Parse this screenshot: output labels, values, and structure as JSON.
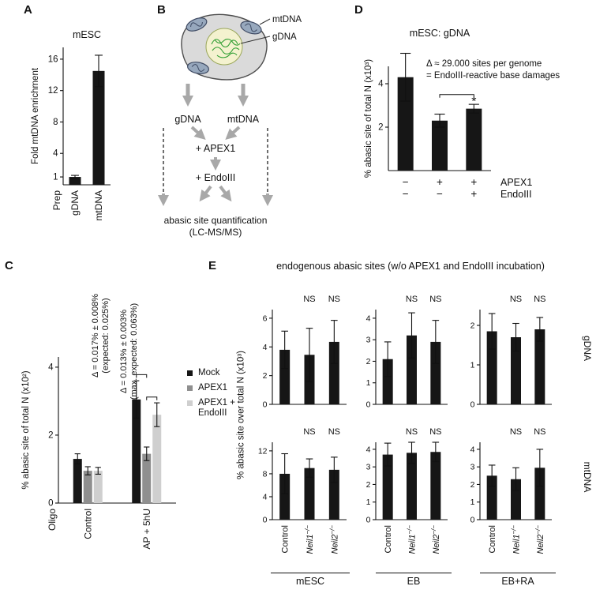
{
  "panels": {
    "A": {
      "letter": "A"
    },
    "B": {
      "letter": "B",
      "diagram": {
        "callout_mtDNA": "mtDNA",
        "callout_gDNA": "gDNA",
        "branch_left": "gDNA",
        "branch_right": "mtDNA",
        "step1": "+ APEX1",
        "step2": "+ EndoIII",
        "output_line1": "abasic site quantification",
        "output_line2": "(LC-MS/MS)",
        "arrow_color": "#a8a8a8",
        "cell_color": "#dadada",
        "nucleus_color": "#f4f2cf",
        "dna_scribble_color": "#2f9e33",
        "mitochondria_color": "#97a8bd"
      }
    },
    "C": {
      "letter": "C",
      "legend": [
        {
          "label": "Mock",
          "color": "#161616"
        },
        {
          "label": "APEX1",
          "color": "#8f8f8f"
        },
        {
          "label": "APEX1 +\nEndoIII",
          "color": "#cfcfcf"
        }
      ],
      "annotation1_line1": "Δ = 0.017% ± 0.008%",
      "annotation1_line2": "(expected: 0.025%)",
      "annotation2_line1": "Δ = 0.013% ± 0.003%",
      "annotation2_line2": "(max. expected: 0.063%)"
    },
    "D": {
      "letter": "D",
      "note_line1": "Δ ≈ 29.000 sites per genome",
      "note_line2": "= EndoIII-reactive base damages"
    },
    "E": {
      "letter": "E",
      "header": "endogenous abasic sites (w/o APEX1 and EndoIII incubation)",
      "ylabel": "% abasic site over total N (x10³)",
      "row_label_top": "gDNA",
      "row_label_bottom": "mtDNA",
      "group_labels": [
        "mESC",
        "EB",
        "EB+RA"
      ]
    }
  },
  "chart_data": [
    {
      "id": "A",
      "type": "bar",
      "title": "mESC",
      "ylabel": "Fold mtDNA enrichment",
      "xlabel": "Prep",
      "categories": [
        "gDNA",
        "mtDNA"
      ],
      "values": [
        1.0,
        14.5
      ],
      "errors": [
        0.2,
        2.0
      ],
      "ylim": [
        0,
        17.5
      ],
      "yticks": [
        1,
        4,
        8,
        12,
        16
      ],
      "bar_color": "#161616"
    },
    {
      "id": "C",
      "type": "bar",
      "ylabel": "% abasic site of total N (x10²)",
      "xlabel": "Oligo",
      "categories": [
        "Control",
        "AP + 5hU"
      ],
      "series": [
        {
          "name": "Mock",
          "color": "#161616",
          "values": [
            1.3,
            3.05
          ],
          "errors": [
            0.15,
            0.55
          ]
        },
        {
          "name": "APEX1",
          "color": "#8f8f8f",
          "values": [
            0.95,
            1.45
          ],
          "errors": [
            0.12,
            0.2
          ]
        },
        {
          "name": "APEX1 + EndoIII",
          "color": "#cfcfcf",
          "values": [
            0.95,
            2.6
          ],
          "errors": [
            0.1,
            0.35
          ]
        }
      ],
      "ylim": [
        0,
        4.3
      ],
      "yticks": [
        0,
        2,
        4
      ],
      "brackets": [
        {
          "b0": [
            1,
            0
          ],
          "b1": [
            1,
            1
          ],
          "y": 3.78
        },
        {
          "b0": [
            1,
            1
          ],
          "b1": [
            1,
            2
          ],
          "y": 3.12
        }
      ]
    },
    {
      "id": "D",
      "type": "bar",
      "title": "mESC: gDNA",
      "ylabel": "% abasic site of total N (x10³)",
      "values": [
        4.3,
        2.3,
        2.85
      ],
      "errors": [
        1.1,
        0.3,
        0.2
      ],
      "ylim": [
        0,
        4.8
      ],
      "yticks": [
        2,
        4
      ],
      "bar_color": "#161616",
      "xrows": [
        {
          "label": "APEX1",
          "signs": [
            "−",
            "+",
            "+"
          ]
        },
        {
          "label": "EndoIII",
          "signs": [
            "−",
            "−",
            "+"
          ]
        }
      ],
      "brackets": [
        {
          "b0": [
            1,
            0
          ],
          "b1": [
            2,
            0
          ],
          "y": 3.5
        }
      ],
      "star": {
        "g": 2,
        "y": 3.0
      }
    },
    {
      "id": "E_gDNA_mESC",
      "type": "bar",
      "values": [
        3.8,
        3.45,
        4.35
      ],
      "errors": [
        1.3,
        1.85,
        1.5
      ],
      "ylim": [
        0,
        6.6
      ],
      "yticks": [
        0,
        2,
        4,
        6
      ],
      "ns": [
        1,
        2
      ],
      "ns_text": "NS",
      "bar_color": "#161616",
      "categories": [
        {
          "text": "Control"
        },
        {
          "text": "Neil1",
          "sup": "−/−",
          "italic": true
        },
        {
          "text": "Neil2",
          "sup": "−/−",
          "italic": true
        }
      ],
      "hide_categories": true
    },
    {
      "id": "E_gDNA_EB",
      "type": "bar",
      "values": [
        2.1,
        3.2,
        2.9
      ],
      "errors": [
        0.8,
        1.05,
        1.0
      ],
      "ylim": [
        0,
        4.4
      ],
      "yticks": [
        0,
        1,
        2,
        3,
        4
      ],
      "ns": [
        1,
        2
      ],
      "ns_text": "NS",
      "bar_color": "#161616",
      "categories": [
        {
          "text": "Control"
        },
        {
          "text": "Neil1",
          "sup": "−/−",
          "italic": true
        },
        {
          "text": "Neil2",
          "sup": "−/−",
          "italic": true
        }
      ],
      "hide_categories": true
    },
    {
      "id": "E_gDNA_EBRA",
      "type": "bar",
      "values": [
        1.85,
        1.7,
        1.9
      ],
      "errors": [
        0.45,
        0.35,
        0.3
      ],
      "ylim": [
        0,
        2.4
      ],
      "yticks": [
        0,
        1,
        2
      ],
      "ns": [
        1,
        2
      ],
      "ns_text": "NS",
      "bar_color": "#161616",
      "categories": [
        {
          "text": "Control"
        },
        {
          "text": "Neil1",
          "sup": "−/−",
          "italic": true
        },
        {
          "text": "Neil2",
          "sup": "−/−",
          "italic": true
        }
      ],
      "hide_categories": true
    },
    {
      "id": "E_mtDNA_mESC",
      "type": "bar",
      "values": [
        8.0,
        9.0,
        8.7
      ],
      "errors": [
        3.5,
        1.6,
        2.2
      ],
      "ylim": [
        0,
        13.5
      ],
      "yticks": [
        0,
        4,
        8,
        12
      ],
      "ns": [
        1,
        2
      ],
      "ns_text": "NS",
      "bar_color": "#161616",
      "categories": [
        {
          "text": "Control"
        },
        {
          "text": "Neil1",
          "sup": "−/−",
          "italic": true
        },
        {
          "text": "Neil2",
          "sup": "−/−",
          "italic": true
        }
      ]
    },
    {
      "id": "E_mtDNA_EB",
      "type": "bar",
      "values": [
        3.7,
        3.8,
        3.85
      ],
      "errors": [
        0.65,
        0.6,
        0.55
      ],
      "ylim": [
        0,
        4.4
      ],
      "yticks": [
        0,
        1,
        2,
        3,
        4
      ],
      "ns": [
        1,
        2
      ],
      "ns_text": "NS",
      "bar_color": "#161616",
      "categories": [
        {
          "text": "Control"
        },
        {
          "text": "Neil1",
          "sup": "−/−",
          "italic": true
        },
        {
          "text": "Neil2",
          "sup": "−/−",
          "italic": true
        }
      ]
    },
    {
      "id": "E_mtDNA_EBRA",
      "type": "bar",
      "values": [
        2.5,
        2.3,
        2.95
      ],
      "errors": [
        0.6,
        0.65,
        1.05
      ],
      "ylim": [
        0,
        4.4
      ],
      "yticks": [
        0,
        1,
        2,
        3,
        4
      ],
      "ns": [
        1,
        2
      ],
      "ns_text": "NS",
      "bar_color": "#161616",
      "categories": [
        {
          "text": "Control"
        },
        {
          "text": "Neil1",
          "sup": "−/−",
          "italic": true
        },
        {
          "text": "Neil2",
          "sup": "−/−",
          "italic": true
        }
      ]
    }
  ]
}
